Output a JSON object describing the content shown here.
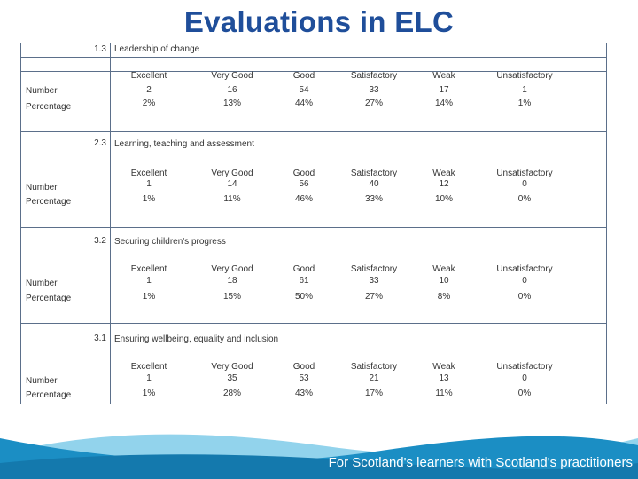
{
  "title": "Evaluations in ELC",
  "row_labels": {
    "number": "Number",
    "percentage": "Percentage"
  },
  "sections": [
    {
      "number": "1.3",
      "title": "Leadership of change",
      "grades": [
        "Excellent",
        "Very Good",
        "Good",
        "Satisfactory",
        "Weak",
        "Unsatisfactory"
      ],
      "numbers": [
        "2",
        "16",
        "54",
        "33",
        "17",
        "1"
      ],
      "percentages": [
        "2%",
        "13%",
        "44%",
        "27%",
        "14%",
        "1%"
      ]
    },
    {
      "number": "2.3",
      "title": "Learning, teaching and assessment",
      "grades": [
        "Excellent",
        "Very Good",
        "Good",
        "Satisfactory",
        "Weak",
        "Unsatisfactory"
      ],
      "numbers": [
        "1",
        "14",
        "56",
        "40",
        "12",
        "0"
      ],
      "percentages": [
        "1%",
        "11%",
        "46%",
        "33%",
        "10%",
        "0%"
      ]
    },
    {
      "number": "3.2",
      "title": "Securing children's progress",
      "grades": [
        "Excellent",
        "Very Good",
        "Good",
        "Satisfactory",
        "Weak",
        "Unsatisfactory"
      ],
      "numbers": [
        "1",
        "18",
        "61",
        "33",
        "10",
        "0"
      ],
      "percentages": [
        "1%",
        "15%",
        "50%",
        "27%",
        "8%",
        "0%"
      ]
    },
    {
      "number": "3.1",
      "title": "Ensuring wellbeing, equality and inclusion",
      "grades": [
        "Excellent",
        "Very Good",
        "Good",
        "Satisfactory",
        "Weak",
        "Unsatisfactory"
      ],
      "numbers": [
        "1",
        "35",
        "53",
        "21",
        "13",
        "0"
      ],
      "percentages": [
        "1%",
        "28%",
        "43%",
        "17%",
        "11%",
        "0%"
      ]
    }
  ],
  "footer": {
    "tagline": "For Scotland's learners with Scotland's practitioners"
  },
  "colors": {
    "title": "#1f4e9a",
    "grid": "#5b6f8a",
    "wave_dark": "#1b8ec4",
    "wave_light": "#7fcbe9"
  }
}
